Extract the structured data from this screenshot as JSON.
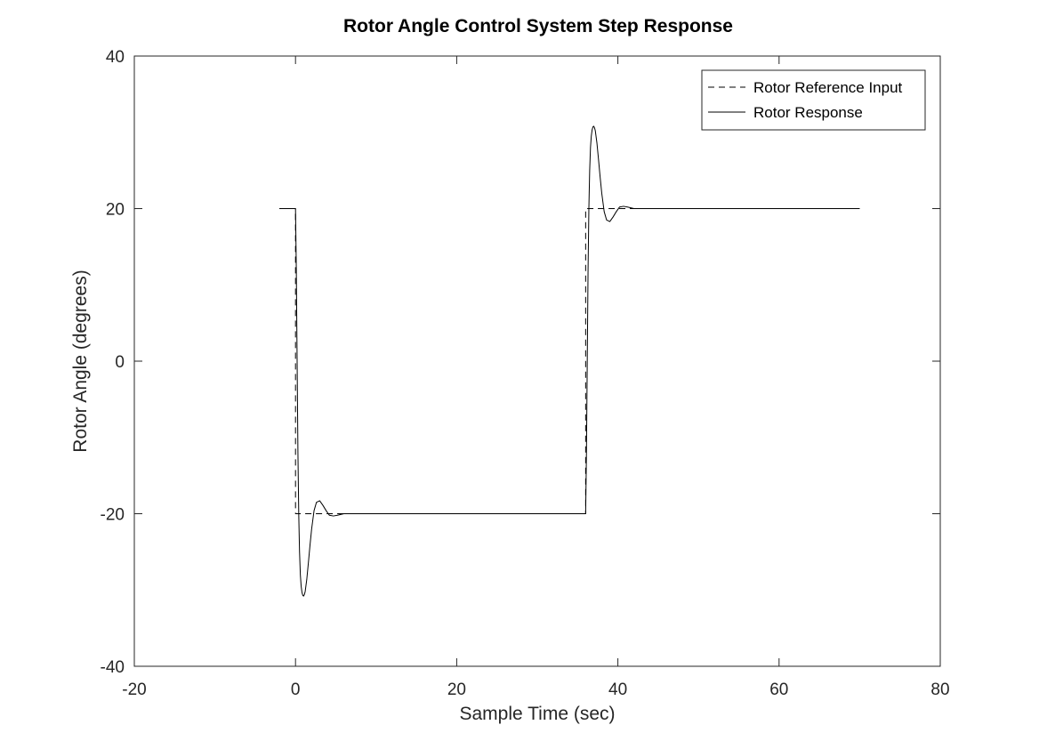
{
  "chart_data": {
    "type": "line",
    "title": "Rotor Angle Control System Step Response",
    "xlabel": "Sample Time (sec)",
    "ylabel": "Rotor Angle (degrees)",
    "xlim": [
      -20,
      80
    ],
    "ylim": [
      -40,
      40
    ],
    "xticks": [
      -20,
      0,
      20,
      40,
      60,
      80
    ],
    "yticks": [
      -40,
      -20,
      0,
      20,
      40
    ],
    "xtick_labels": [
      "-20",
      "0",
      "20",
      "40",
      "60",
      "80"
    ],
    "ytick_labels": [
      "-40",
      "-20",
      "0",
      "20",
      "40"
    ],
    "grid": false,
    "legend_position": "top-right",
    "colors": {
      "line": "#000000",
      "axes": "#262626",
      "background": "#ffffff"
    },
    "series": [
      {
        "name": "Rotor Reference Input",
        "style": "dashed",
        "x": [
          -2,
          0,
          0,
          36,
          36,
          70
        ],
        "y": [
          20,
          20,
          -20,
          -20,
          20,
          20
        ]
      },
      {
        "name": "Rotor Response",
        "style": "solid",
        "x": [
          -2,
          0,
          0.1,
          0.2,
          0.3,
          0.4,
          0.5,
          0.6,
          0.7,
          0.8,
          0.9,
          1.0,
          1.1,
          1.2,
          1.4,
          1.6,
          1.8,
          2.0,
          2.3,
          2.6,
          3.0,
          3.4,
          3.8,
          4.2,
          4.7,
          5.2,
          6.0,
          7.0,
          36,
          36.1,
          36.2,
          36.3,
          36.4,
          36.5,
          36.6,
          36.7,
          36.8,
          36.9,
          37.0,
          37.1,
          37.2,
          37.4,
          37.6,
          37.8,
          38.0,
          38.3,
          38.6,
          39.0,
          39.4,
          39.8,
          40.2,
          40.7,
          41.2,
          42.0,
          43.0,
          70
        ],
        "y": [
          20,
          20,
          12,
          0,
          -12,
          -20,
          -25,
          -28,
          -29.5,
          -30.3,
          -30.7,
          -30.8,
          -30.6,
          -30.2,
          -28.6,
          -26.4,
          -24.1,
          -22.0,
          -19.6,
          -18.5,
          -18.3,
          -18.9,
          -19.6,
          -20.2,
          -20.3,
          -20.2,
          -20.0,
          -20.0,
          -20,
          -12,
          0,
          12,
          20,
          25,
          28,
          29.5,
          30.3,
          30.7,
          30.8,
          30.6,
          30.2,
          28.6,
          26.4,
          24.1,
          22.0,
          19.6,
          18.5,
          18.3,
          18.9,
          19.6,
          20.2,
          20.3,
          20.2,
          20.0,
          20.0,
          20.0
        ]
      }
    ]
  }
}
